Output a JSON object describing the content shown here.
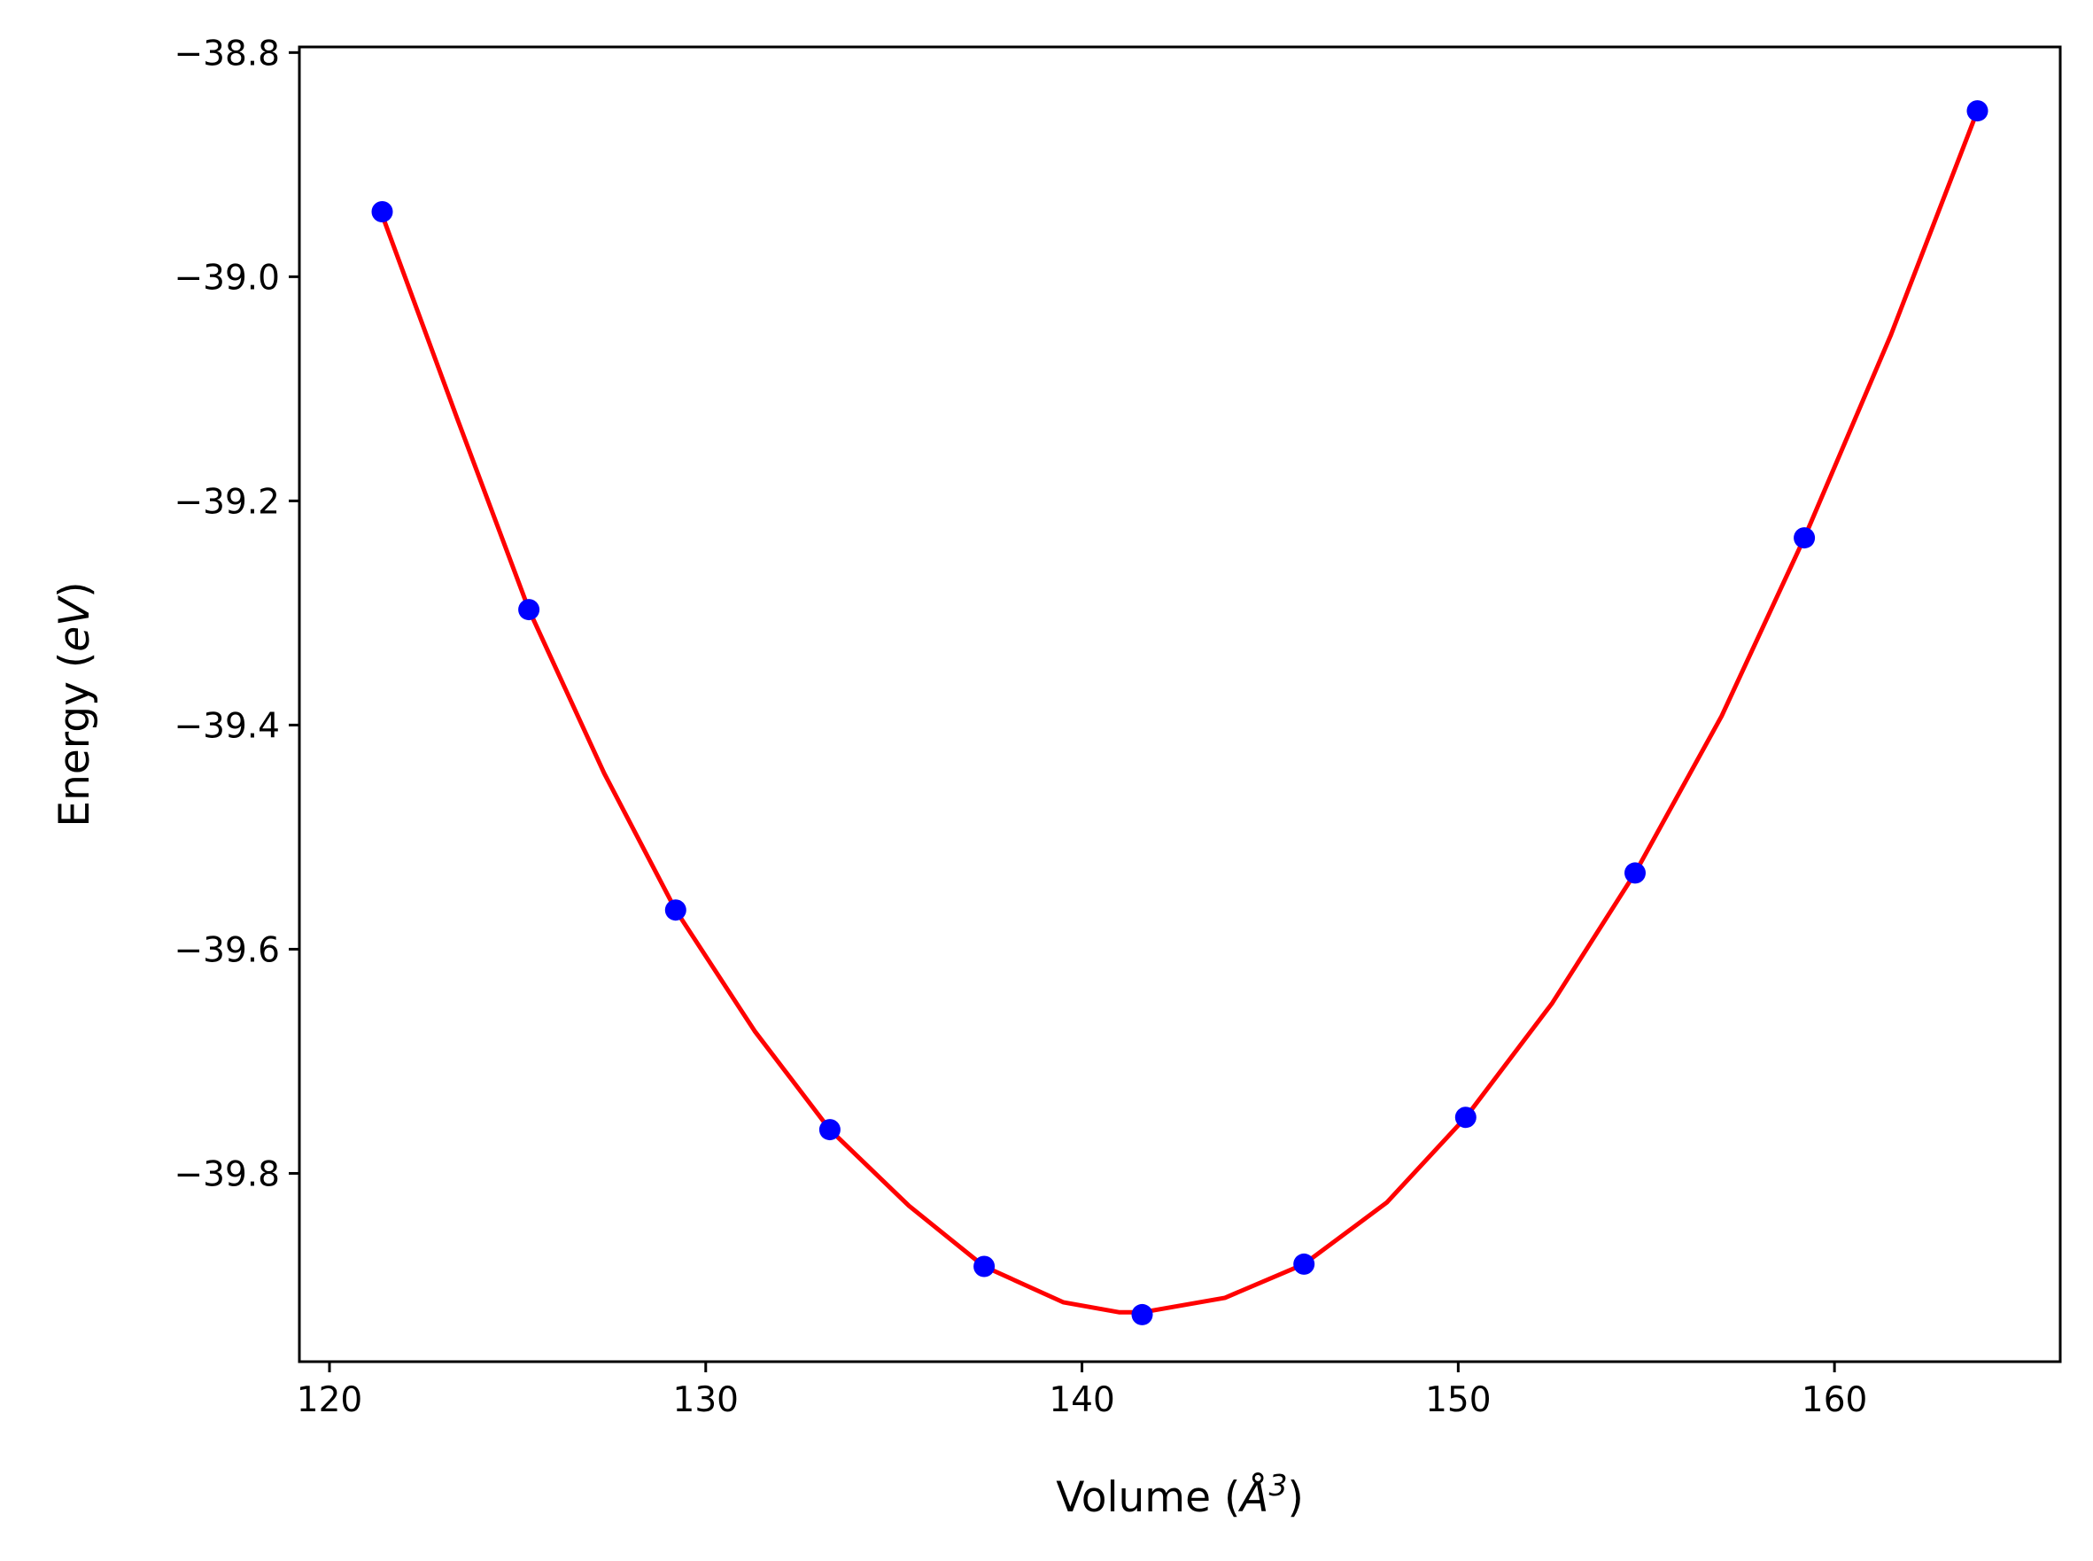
{
  "chart_data": {
    "type": "scatter",
    "title": "",
    "xlabel": {
      "prefix": "Volume (",
      "symbol": "Å",
      "exponent": "3",
      "suffix": ")"
    },
    "ylabel": {
      "prefix": "Energy (",
      "unit": "eV",
      "suffix": ")"
    },
    "xlim": [
      119.2,
      166.0
    ],
    "ylim": [
      -39.968,
      -38.795
    ],
    "xticks": [
      120,
      130,
      140,
      150,
      160
    ],
    "xtick_labels": [
      "120",
      "130",
      "140",
      "150",
      "160"
    ],
    "yticks": [
      -38.8,
      -39.0,
      -39.2,
      -39.4,
      -39.6,
      -39.8
    ],
    "ytick_labels": [
      "−38.8",
      "−39.0",
      "−39.2",
      "−39.4",
      "−39.6",
      "−39.8"
    ],
    "grid": false,
    "legend": "none",
    "series": [
      {
        "kind": "points",
        "color": "#0000ff",
        "marker": "circle",
        "x": [
          121.4,
          125.3,
          129.2,
          133.3,
          137.4,
          141.6,
          145.9,
          150.2,
          154.7,
          159.2,
          163.8
        ],
        "y": [
          -38.942,
          -39.297,
          -39.565,
          -39.761,
          -39.883,
          -39.926,
          -39.881,
          -39.75,
          -39.532,
          -39.233,
          -38.852
        ]
      },
      {
        "kind": "fit-line",
        "color": "#ff0000",
        "x": [
          121.4,
          123.4,
          125.3,
          127.3,
          129.2,
          131.3,
          133.3,
          135.4,
          137.4,
          139.5,
          141.0,
          141.6,
          143.8,
          145.9,
          148.1,
          150.2,
          152.5,
          154.7,
          157.0,
          159.2,
          161.5,
          163.8
        ],
        "y": [
          -38.945,
          -39.127,
          -39.297,
          -39.443,
          -39.565,
          -39.673,
          -39.761,
          -39.829,
          -39.883,
          -39.915,
          -39.924,
          -39.924,
          -39.911,
          -39.881,
          -39.826,
          -39.75,
          -39.648,
          -39.532,
          -39.392,
          -39.233,
          -39.052,
          -38.852
        ]
      }
    ]
  }
}
